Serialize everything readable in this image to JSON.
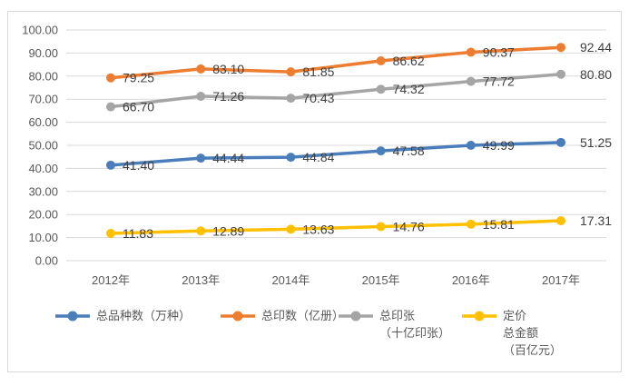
{
  "chart_data": {
    "type": "line",
    "categories": [
      "2012年",
      "2013年",
      "2014年",
      "2015年",
      "2016年",
      "2017年"
    ],
    "series": [
      {
        "name": "总品种数（万种）",
        "legend_lines": [
          "总品种数（万种）"
        ],
        "color": "#4A7EBB",
        "values": [
          41.4,
          44.44,
          44.84,
          47.58,
          49.99,
          51.25
        ]
      },
      {
        "name": "总印数（亿册）",
        "legend_lines": [
          "总印数（亿册）"
        ],
        "color": "#ED7D31",
        "values": [
          79.25,
          83.1,
          81.85,
          86.62,
          90.37,
          92.44
        ]
      },
      {
        "name": "总印张（十亿印张）",
        "legend_lines": [
          "总印张",
          "（十亿印张）"
        ],
        "color": "#A5A5A5",
        "values": [
          66.7,
          71.26,
          70.43,
          74.32,
          77.72,
          80.8
        ]
      },
      {
        "name": "定价总金额（百亿元）",
        "legend_lines": [
          "定价",
          "总金额",
          "（百亿元）"
        ],
        "color": "#FFC000",
        "values": [
          11.83,
          12.89,
          13.63,
          14.76,
          15.81,
          17.31
        ]
      }
    ],
    "title": "",
    "xlabel": "",
    "ylabel": "",
    "ylim": [
      0,
      100
    ],
    "ytick_step": 10,
    "ytick_labels": [
      "0.00",
      "10.00",
      "20.00",
      "30.00",
      "40.00",
      "50.00",
      "60.00",
      "70.00",
      "80.00",
      "90.00",
      "100.00"
    ],
    "grid": true,
    "data_labels": true,
    "legend_position": "bottom"
  },
  "style": {
    "background": "#FFFFFF",
    "frame_border": "#D9D9D9",
    "grid_color": "#D9D9D9",
    "axis_text_color": "#595959",
    "data_label_color": "#404040",
    "legend_text_color": "#595959"
  }
}
